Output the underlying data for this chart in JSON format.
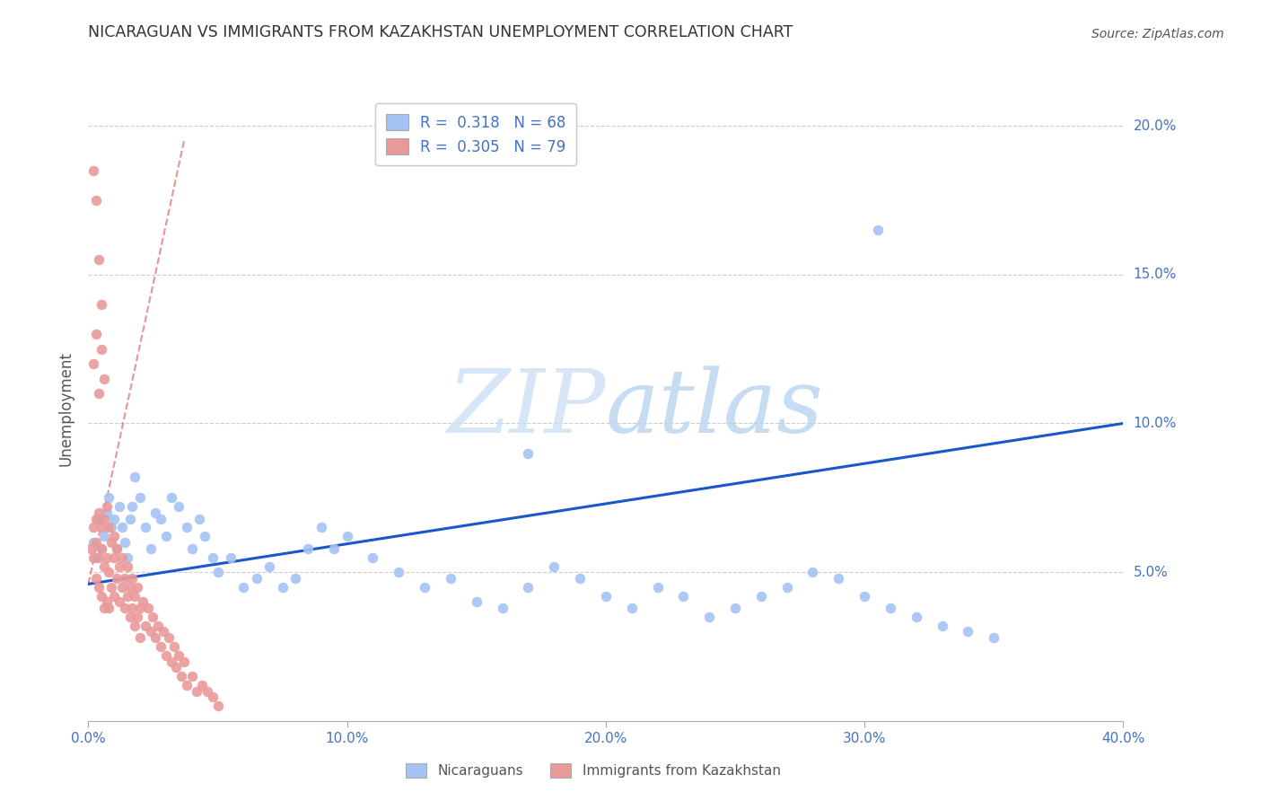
{
  "title": "NICARAGUAN VS IMMIGRANTS FROM KAZAKHSTAN UNEMPLOYMENT CORRELATION CHART",
  "source": "Source: ZipAtlas.com",
  "ylabel": "Unemployment",
  "legend_label1": "Nicaraguans",
  "legend_label2": "Immigrants from Kazakhstan",
  "blue_color": "#a4c2f4",
  "pink_color": "#ea9999",
  "blue_line_color": "#1a56cc",
  "pink_line_color": "#e06666",
  "label_color": "#4472c4",
  "title_color": "#333333",
  "source_color": "#555555",
  "grid_color": "#cccccc",
  "xmin": 0.0,
  "xmax": 0.4,
  "ymin": 0.0,
  "ymax": 0.21,
  "blue_trend_x": [
    0.0,
    0.4
  ],
  "blue_trend_y": [
    0.046,
    0.1
  ],
  "pink_trend_x": [
    0.0,
    0.037
  ],
  "pink_trend_y": [
    0.046,
    0.195
  ],
  "blue_x": [
    0.002,
    0.003,
    0.004,
    0.005,
    0.006,
    0.007,
    0.008,
    0.009,
    0.01,
    0.011,
    0.012,
    0.013,
    0.014,
    0.015,
    0.016,
    0.017,
    0.018,
    0.02,
    0.022,
    0.024,
    0.026,
    0.028,
    0.03,
    0.032,
    0.035,
    0.038,
    0.04,
    0.043,
    0.045,
    0.048,
    0.05,
    0.055,
    0.06,
    0.065,
    0.07,
    0.075,
    0.08,
    0.085,
    0.09,
    0.095,
    0.1,
    0.11,
    0.12,
    0.13,
    0.14,
    0.15,
    0.16,
    0.17,
    0.18,
    0.19,
    0.2,
    0.21,
    0.22,
    0.23,
    0.24,
    0.25,
    0.26,
    0.27,
    0.28,
    0.29,
    0.3,
    0.31,
    0.32,
    0.33,
    0.34,
    0.35,
    0.17,
    0.305
  ],
  "blue_y": [
    0.06,
    0.055,
    0.068,
    0.058,
    0.062,
    0.07,
    0.075,
    0.065,
    0.068,
    0.058,
    0.072,
    0.065,
    0.06,
    0.055,
    0.068,
    0.072,
    0.082,
    0.075,
    0.065,
    0.058,
    0.07,
    0.068,
    0.062,
    0.075,
    0.072,
    0.065,
    0.058,
    0.068,
    0.062,
    0.055,
    0.05,
    0.055,
    0.045,
    0.048,
    0.052,
    0.045,
    0.048,
    0.058,
    0.065,
    0.058,
    0.062,
    0.055,
    0.05,
    0.045,
    0.048,
    0.04,
    0.038,
    0.045,
    0.052,
    0.048,
    0.042,
    0.038,
    0.045,
    0.042,
    0.035,
    0.038,
    0.042,
    0.045,
    0.05,
    0.048,
    0.042,
    0.038,
    0.035,
    0.032,
    0.03,
    0.028,
    0.09,
    0.165
  ],
  "pink_x": [
    0.001,
    0.002,
    0.002,
    0.003,
    0.003,
    0.003,
    0.004,
    0.004,
    0.004,
    0.005,
    0.005,
    0.005,
    0.006,
    0.006,
    0.006,
    0.007,
    0.007,
    0.007,
    0.008,
    0.008,
    0.008,
    0.009,
    0.009,
    0.01,
    0.01,
    0.01,
    0.011,
    0.011,
    0.012,
    0.012,
    0.013,
    0.013,
    0.014,
    0.014,
    0.015,
    0.015,
    0.016,
    0.016,
    0.017,
    0.017,
    0.018,
    0.018,
    0.019,
    0.019,
    0.02,
    0.02,
    0.021,
    0.022,
    0.023,
    0.024,
    0.025,
    0.026,
    0.027,
    0.028,
    0.029,
    0.03,
    0.031,
    0.032,
    0.033,
    0.034,
    0.035,
    0.036,
    0.037,
    0.038,
    0.04,
    0.042,
    0.044,
    0.046,
    0.048,
    0.05,
    0.002,
    0.003,
    0.004,
    0.005,
    0.006,
    0.004,
    0.003,
    0.005,
    0.002
  ],
  "pink_y": [
    0.058,
    0.065,
    0.055,
    0.06,
    0.068,
    0.048,
    0.07,
    0.055,
    0.045,
    0.065,
    0.058,
    0.042,
    0.068,
    0.052,
    0.038,
    0.072,
    0.055,
    0.04,
    0.065,
    0.05,
    0.038,
    0.06,
    0.045,
    0.055,
    0.062,
    0.042,
    0.058,
    0.048,
    0.052,
    0.04,
    0.055,
    0.045,
    0.048,
    0.038,
    0.052,
    0.042,
    0.045,
    0.035,
    0.048,
    0.038,
    0.042,
    0.032,
    0.045,
    0.035,
    0.038,
    0.028,
    0.04,
    0.032,
    0.038,
    0.03,
    0.035,
    0.028,
    0.032,
    0.025,
    0.03,
    0.022,
    0.028,
    0.02,
    0.025,
    0.018,
    0.022,
    0.015,
    0.02,
    0.012,
    0.015,
    0.01,
    0.012,
    0.01,
    0.008,
    0.005,
    0.12,
    0.13,
    0.11,
    0.125,
    0.115,
    0.155,
    0.175,
    0.14,
    0.185
  ]
}
